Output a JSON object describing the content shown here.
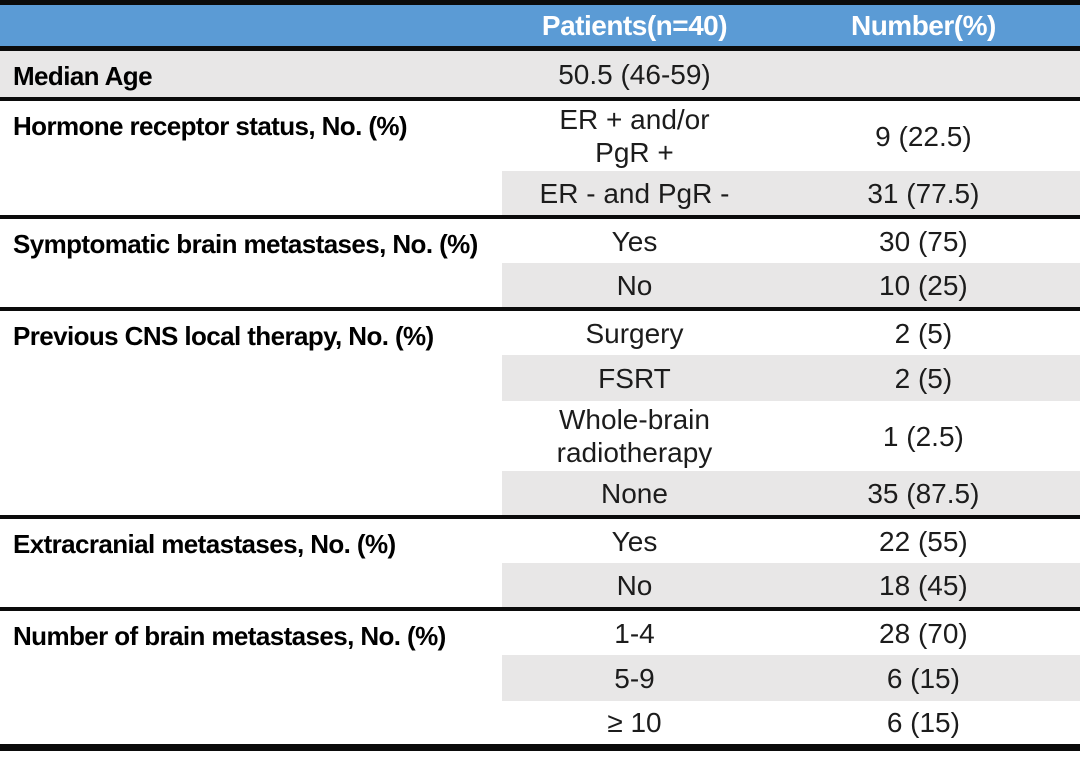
{
  "table": {
    "columns": [
      "",
      "Patients(n=40)",
      "Number(%)"
    ],
    "header_bg": "#5B9BD5",
    "band_bg": "#E8E7E7",
    "header_text_color": "#FFFFFF",
    "sections": [
      {
        "label": "Median Age",
        "full_shade": true,
        "rows": [
          {
            "value": "50.5 (46-59)",
            "number": "",
            "shaded": true
          }
        ]
      },
      {
        "label": "Hormone receptor status, No. (%)",
        "full_shade": false,
        "rows": [
          {
            "value": "ER + and/or\nPgR +",
            "number": "9 (22.5)",
            "shaded": false
          },
          {
            "value": "ER - and PgR -",
            "number": "31 (77.5)",
            "shaded": true
          }
        ]
      },
      {
        "label": "Symptomatic brain metastases, No. (%)",
        "full_shade": false,
        "rows": [
          {
            "value": "Yes",
            "number": "30 (75)",
            "shaded": false
          },
          {
            "value": "No",
            "number": "10 (25)",
            "shaded": true
          }
        ]
      },
      {
        "label": "Previous CNS local therapy, No. (%)",
        "full_shade": false,
        "rows": [
          {
            "value": "Surgery",
            "number": "2 (5)",
            "shaded": false
          },
          {
            "value": "FSRT",
            "number": "2 (5)",
            "shaded": true
          },
          {
            "value": "Whole-brain\nradiotherapy",
            "number": "1 (2.5)",
            "shaded": false
          },
          {
            "value": "None",
            "number": "35 (87.5)",
            "shaded": true
          }
        ]
      },
      {
        "label": "Extracranial metastases, No. (%)",
        "full_shade": false,
        "rows": [
          {
            "value": "Yes",
            "number": "22 (55)",
            "shaded": false
          },
          {
            "value": "No",
            "number": "18 (45)",
            "shaded": true
          }
        ]
      },
      {
        "label": "Number of brain metastases, No. (%)",
        "full_shade": false,
        "rows": [
          {
            "value": "1-4",
            "number": "28 (70)",
            "shaded": false
          },
          {
            "value": "5-9",
            "number": "6 (15)",
            "shaded": true
          },
          {
            "value": "≥ 10",
            "number": "6 (15)",
            "shaded": false
          }
        ]
      }
    ]
  }
}
